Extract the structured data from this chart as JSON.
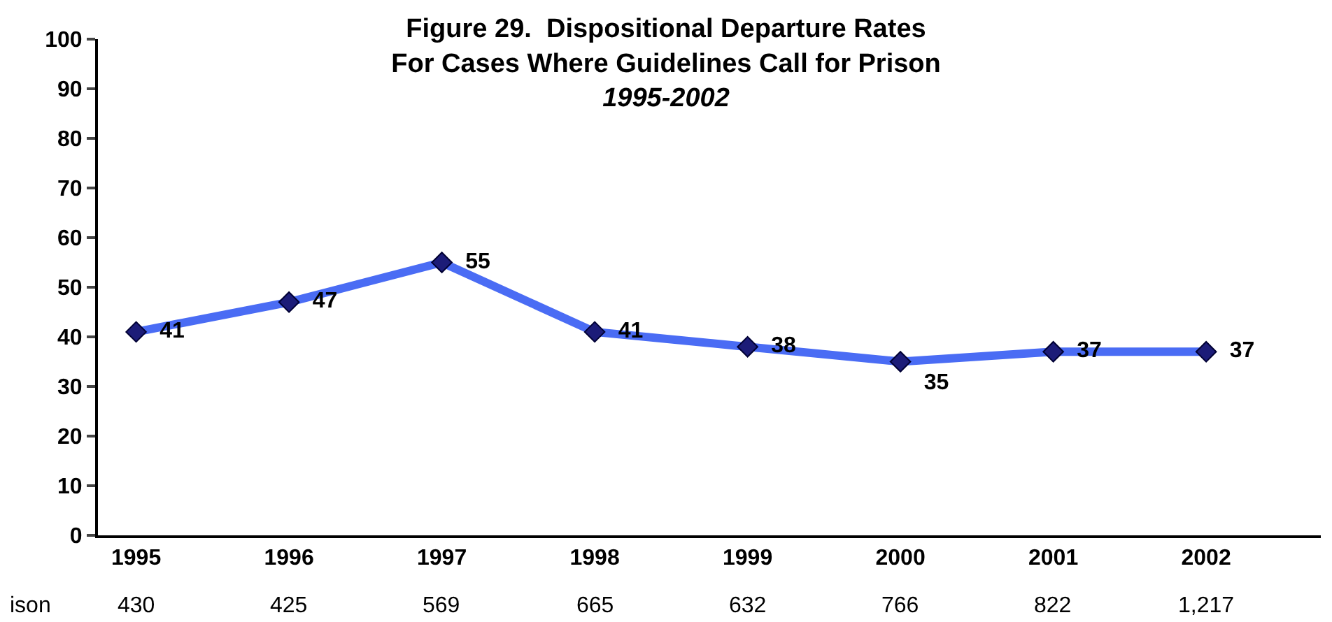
{
  "chart_data": {
    "type": "line",
    "title": "Figure 29.  Dispositional Departure Rates\nFor Cases Where Guidelines Call for Prison",
    "subtitle": "1995-2002",
    "categories": [
      "1995",
      "1996",
      "1997",
      "1998",
      "1999",
      "2000",
      "2001",
      "2002"
    ],
    "series": [
      {
        "color": "#4a6cf4",
        "values": [
          41,
          47,
          55,
          41,
          38,
          35,
          37,
          37
        ]
      }
    ],
    "ylim": [
      0,
      100
    ],
    "yticks": [
      0,
      10,
      20,
      30,
      40,
      50,
      60,
      70,
      80,
      90,
      100
    ],
    "marker": "diamond",
    "line_style": "solid",
    "data_labels": true,
    "annotations": [
      "ison",
      "430",
      "425",
      "569",
      "665",
      "632",
      "766",
      "822",
      "1,217"
    ]
  }
}
